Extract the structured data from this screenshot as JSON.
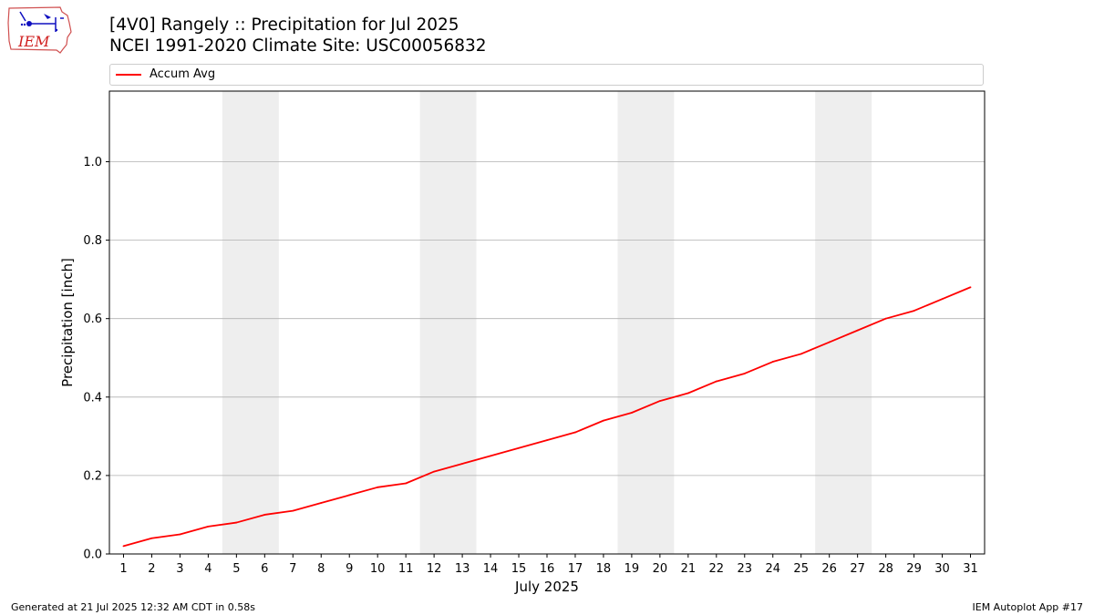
{
  "header": {
    "title_line1": "[4V0] Rangely :: Precipitation for Jul 2025",
    "title_line2": "NCEI 1991-2020 Climate Site: USC00056832"
  },
  "logo": {
    "text": "IEM",
    "icon": "iem-iowa-logo-icon"
  },
  "footer": {
    "left": "Generated at 21 Jul 2025 12:32 AM CDT in 0.58s",
    "right": "IEM Autoplot App #17"
  },
  "chart_data": {
    "type": "line",
    "xlabel": "July 2025",
    "ylabel": "Precipitation [inch]",
    "x": [
      1,
      2,
      3,
      4,
      5,
      6,
      7,
      8,
      9,
      10,
      11,
      12,
      13,
      14,
      15,
      16,
      17,
      18,
      19,
      20,
      21,
      22,
      23,
      24,
      25,
      26,
      27,
      28,
      29,
      30,
      31
    ],
    "series": [
      {
        "name": "Accum Avg",
        "color": "#ff0000",
        "values": [
          0.02,
          0.04,
          0.05,
          0.07,
          0.08,
          0.1,
          0.11,
          0.13,
          0.15,
          0.17,
          0.18,
          0.21,
          0.23,
          0.25,
          0.27,
          0.29,
          0.31,
          0.34,
          0.36,
          0.39,
          0.41,
          0.44,
          0.46,
          0.49,
          0.51,
          0.54,
          0.57,
          0.6,
          0.62,
          0.65,
          0.68
        ]
      }
    ],
    "xlim": [
      0.5,
      31.5
    ],
    "ylim": [
      0,
      1.18
    ],
    "yticks": [
      0.0,
      0.2,
      0.4,
      0.6,
      0.8,
      1.0
    ],
    "ytick_labels": [
      "0.0",
      "0.2",
      "0.4",
      "0.6",
      "0.8",
      "1.0"
    ],
    "weekend_bands": [
      [
        4.5,
        6.5
      ],
      [
        11.5,
        13.5
      ],
      [
        18.5,
        20.5
      ],
      [
        25.5,
        27.5
      ]
    ],
    "grid": "y",
    "legend_position": "top",
    "band_color": "#eeeeee",
    "grid_color": "#b0b0b0"
  }
}
